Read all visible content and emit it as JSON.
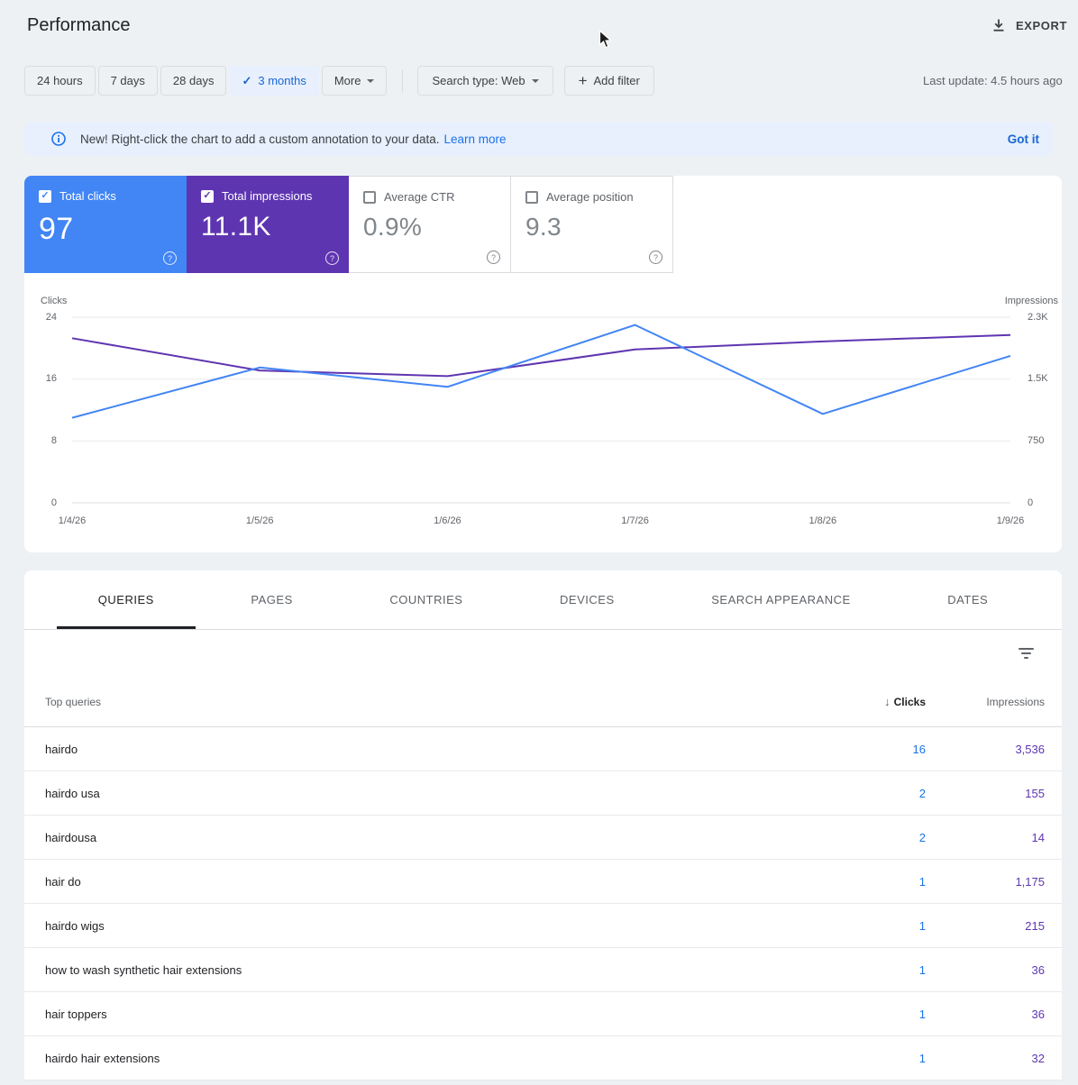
{
  "header": {
    "title": "Performance",
    "export": "EXPORT"
  },
  "toolbar": {
    "ranges": [
      {
        "label": "24 hours",
        "selected": false
      },
      {
        "label": "7 days",
        "selected": false
      },
      {
        "label": "28 days",
        "selected": false
      },
      {
        "label": "3 months",
        "selected": true
      },
      {
        "label": "More",
        "selected": false
      }
    ],
    "search_type": "Search type: Web",
    "add_filter": "Add filter",
    "last_update": "Last update: 4.5 hours ago"
  },
  "banner": {
    "message": "New! Right-click the chart to add a custom annotation to your data.",
    "link": "Learn more",
    "dismiss": "Got it"
  },
  "metric_cards": [
    {
      "label": "Total clicks",
      "value": "97",
      "checked": true,
      "bg": "#4285f4"
    },
    {
      "label": "Total impressions",
      "value": "11.1K",
      "checked": true,
      "bg": "#5e35b1"
    },
    {
      "label": "Average CTR",
      "value": "0.9%",
      "checked": false,
      "bg": "#ffffff"
    },
    {
      "label": "Average position",
      "value": "9.3",
      "checked": false,
      "bg": "#ffffff"
    }
  ],
  "chart_data": {
    "type": "line",
    "x": [
      "1/4/26",
      "1/5/26",
      "1/6/26",
      "1/7/26",
      "1/8/26",
      "1/9/26"
    ],
    "series": [
      {
        "name": "Clicks",
        "axis": "left",
        "color": "#4285f4",
        "values": [
          11,
          17.5,
          15,
          23,
          11.5,
          19
        ]
      },
      {
        "name": "Impressions",
        "axis": "right",
        "color": "#5e35b1",
        "values": [
          2040,
          1640,
          1570,
          1900,
          2000,
          2080
        ]
      }
    ],
    "left_axis": {
      "label": "Clicks",
      "max": 24,
      "ticks": [
        "24",
        "16",
        "8",
        "0"
      ]
    },
    "right_axis": {
      "label": "Impressions",
      "max": 2300,
      "ticks": [
        "2.3K",
        "1.5K",
        "750",
        "0"
      ]
    },
    "grid": true,
    "legend_position": "none"
  },
  "tabs": [
    {
      "label": "QUERIES",
      "active": true
    },
    {
      "label": "PAGES",
      "active": false
    },
    {
      "label": "COUNTRIES",
      "active": false
    },
    {
      "label": "DEVICES",
      "active": false
    },
    {
      "label": "SEARCH APPEARANCE",
      "active": false
    },
    {
      "label": "DATES",
      "active": false
    }
  ],
  "table": {
    "columns": {
      "query": "Top queries",
      "clicks": "Clicks",
      "impressions": "Impressions"
    },
    "rows": [
      {
        "query": "hairdo",
        "clicks": "16",
        "impressions": "3,536"
      },
      {
        "query": "hairdo usa",
        "clicks": "2",
        "impressions": "155"
      },
      {
        "query": "hairdousa",
        "clicks": "2",
        "impressions": "14"
      },
      {
        "query": "hair do",
        "clicks": "1",
        "impressions": "1,175"
      },
      {
        "query": "hairdo wigs",
        "clicks": "1",
        "impressions": "215"
      },
      {
        "query": "how to wash synthetic hair extensions",
        "clicks": "1",
        "impressions": "36"
      },
      {
        "query": "hair toppers",
        "clicks": "1",
        "impressions": "36"
      },
      {
        "query": "hairdo hair extensions",
        "clicks": "1",
        "impressions": "32"
      }
    ]
  },
  "icons": {
    "check": "✓",
    "sort_desc": "↓",
    "plus": "+",
    "question": "?"
  },
  "colors": {
    "clicks_blue": "#4285f4",
    "impressions_purple": "#5e35b1",
    "link_blue": "#1a73e8",
    "selected_chip_bg": "#e8f0fe"
  }
}
